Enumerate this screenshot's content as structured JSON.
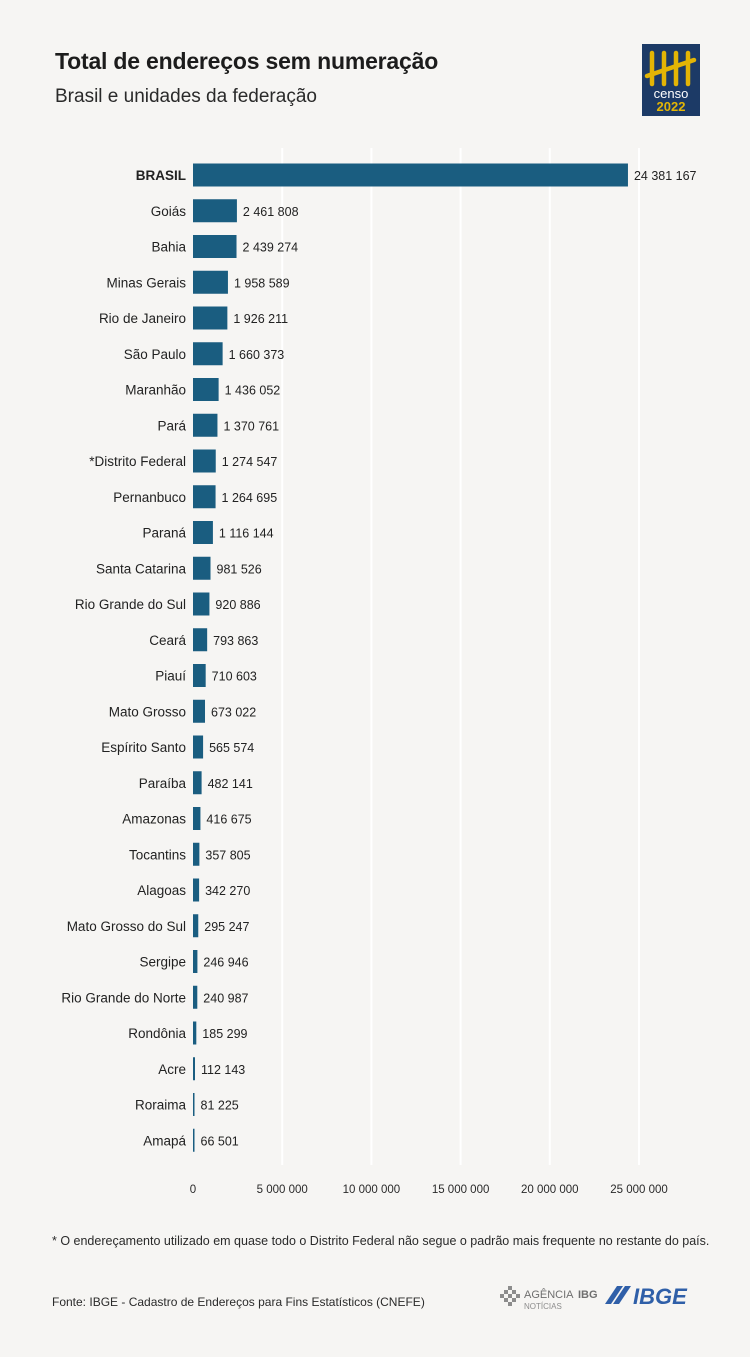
{
  "header": {
    "title": "Total de endereços sem numeração",
    "subtitle": "Brasil e unidades da federação"
  },
  "logo": {
    "icon": "censo-2022-logo",
    "line1": "censo",
    "line2": "2022",
    "bg_color": "#1c3a66",
    "accent_color": "#e3b505"
  },
  "chart_data": {
    "type": "bar",
    "orientation": "horizontal",
    "categories": [
      "BRASIL",
      "Goiás",
      "Bahia",
      "Minas Gerais",
      "Rio de Janeiro",
      "São Paulo",
      "Maranhão",
      "Pará",
      "*Distrito Federal",
      "Pernanbuco",
      "Paraná",
      "Santa Catarina",
      "Rio Grande do Sul",
      "Ceará",
      "Piauí",
      "Mato Grosso",
      "Espírito Santo",
      "Paraíba",
      "Amazonas",
      "Tocantins",
      "Alagoas",
      "Mato Grosso do Sul",
      "Sergipe",
      "Rio Grande do Norte",
      "Rondônia",
      "Acre",
      "Roraima",
      "Amapá"
    ],
    "values": [
      24381167,
      2461808,
      2439274,
      1958589,
      1926211,
      1660373,
      1436052,
      1370761,
      1274547,
      1264695,
      1116144,
      981526,
      920886,
      793863,
      710603,
      673022,
      565574,
      482141,
      416675,
      357805,
      342270,
      295247,
      246946,
      240987,
      185299,
      112143,
      81225,
      66501
    ],
    "value_labels": [
      "24 381 167",
      "2 461 808",
      "2 439 274",
      "1 958 589",
      "1 926 211",
      "1 660 373",
      "1 436 052",
      "1 370 761",
      "1 274 547",
      "1 264 695",
      "1 116 144",
      "981 526",
      "920 886",
      "793 863",
      "710 603",
      "673 022",
      "565 574",
      "482 141",
      "416 675",
      "357 805",
      "342 270",
      "295 247",
      "246 946",
      "240 987",
      "185 299",
      "112 143",
      "81 225",
      "66 501"
    ],
    "x_ticks": [
      0,
      5000000,
      10000000,
      15000000,
      20000000,
      25000000
    ],
    "x_tick_labels": [
      "0",
      "5 000 000",
      "10 000 000",
      "15 000 000",
      "20 000 000",
      "25 000 000"
    ],
    "xlim": [
      0,
      25000000
    ],
    "grid": true,
    "bar_color": "#1a5d80",
    "title": "Total de endereços sem numeração",
    "xlabel": "",
    "ylabel": ""
  },
  "footnote": "* O endereçamento utilizado em quase todo o Distrito Federal não segue o padrão mais frequente no restante do país.",
  "source": "Fonte: IBGE - Cadastro de Endereços para Fins Estatísticos (CNEFE)",
  "agencia": {
    "icon": "agencia-ibge-logo",
    "name_prefix": "AGÊNCIA",
    "name_suffix": "IBGE",
    "tagline": "NOTÍCIAS"
  },
  "ibge_logo": {
    "icon": "ibge-logo",
    "text": "IBGE",
    "color": "#2f5fa8"
  }
}
